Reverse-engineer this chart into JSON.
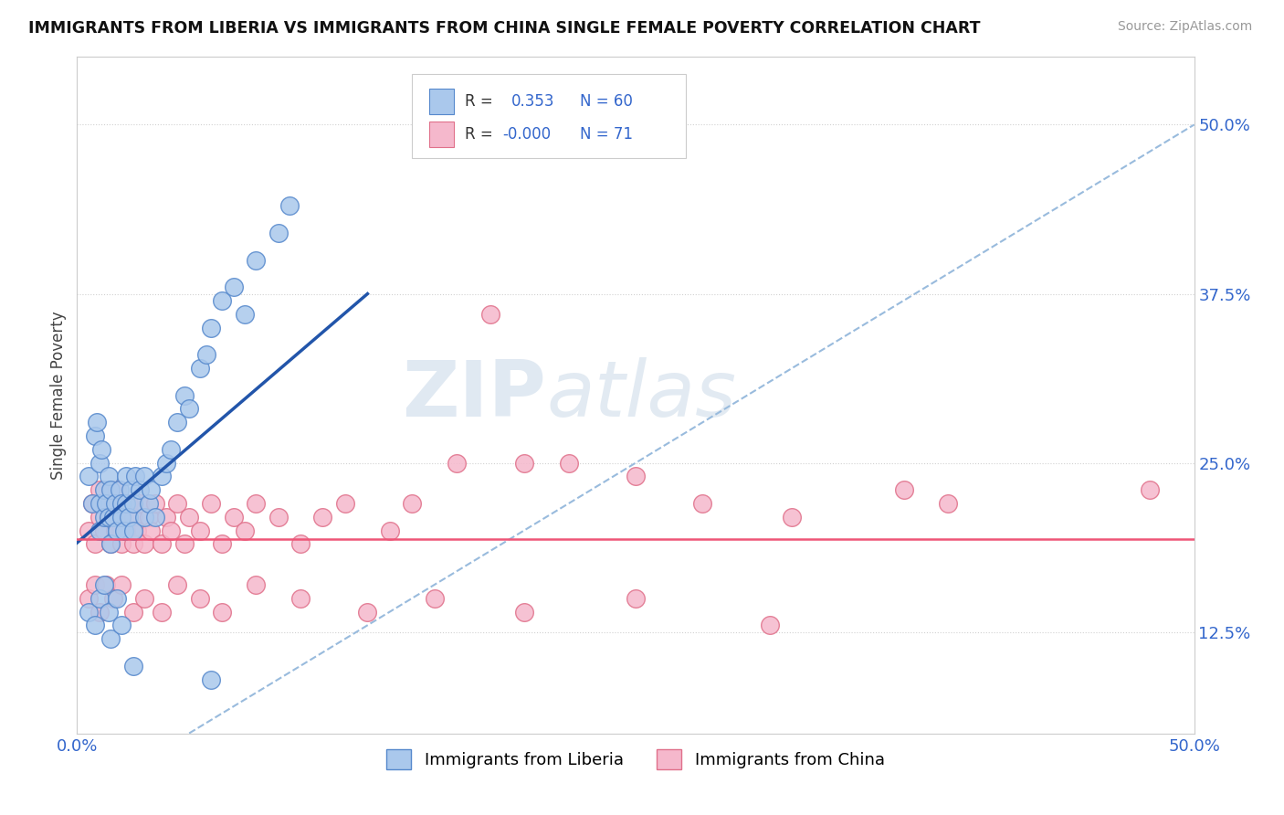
{
  "title": "IMMIGRANTS FROM LIBERIA VS IMMIGRANTS FROM CHINA SINGLE FEMALE POVERTY CORRELATION CHART",
  "source": "Source: ZipAtlas.com",
  "ylabel": "Single Female Poverty",
  "ytick_labels": [
    "12.5%",
    "25.0%",
    "37.5%",
    "50.0%"
  ],
  "ytick_values": [
    0.125,
    0.25,
    0.375,
    0.5
  ],
  "xlim": [
    0.0,
    0.5
  ],
  "ylim": [
    0.05,
    0.55
  ],
  "liberia_color": "#aac8ec",
  "china_color": "#f5b8cc",
  "liberia_edge": "#5588cc",
  "china_edge": "#e0708a",
  "liberia_line_color": "#2255aa",
  "china_line_color": "#ee5577",
  "dash_color": "#99bbdd",
  "watermark_color": "#ccdde8",
  "background_color": "#ffffff",
  "liberia_x": [
    0.005,
    0.007,
    0.008,
    0.009,
    0.01,
    0.01,
    0.01,
    0.011,
    0.012,
    0.012,
    0.013,
    0.014,
    0.014,
    0.015,
    0.015,
    0.016,
    0.017,
    0.018,
    0.019,
    0.02,
    0.02,
    0.021,
    0.022,
    0.022,
    0.023,
    0.024,
    0.025,
    0.025,
    0.026,
    0.028,
    0.03,
    0.03,
    0.032,
    0.033,
    0.035,
    0.038,
    0.04,
    0.042,
    0.045,
    0.048,
    0.05,
    0.055,
    0.058,
    0.06,
    0.065,
    0.07,
    0.075,
    0.08,
    0.09,
    0.095,
    0.005,
    0.008,
    0.01,
    0.012,
    0.014,
    0.015,
    0.018,
    0.02,
    0.025,
    0.06
  ],
  "liberia_y": [
    0.24,
    0.22,
    0.27,
    0.28,
    0.2,
    0.22,
    0.25,
    0.26,
    0.21,
    0.23,
    0.22,
    0.24,
    0.21,
    0.23,
    0.19,
    0.21,
    0.22,
    0.2,
    0.23,
    0.22,
    0.21,
    0.2,
    0.22,
    0.24,
    0.21,
    0.23,
    0.22,
    0.2,
    0.24,
    0.23,
    0.21,
    0.24,
    0.22,
    0.23,
    0.21,
    0.24,
    0.25,
    0.26,
    0.28,
    0.3,
    0.29,
    0.32,
    0.33,
    0.35,
    0.37,
    0.38,
    0.36,
    0.4,
    0.42,
    0.44,
    0.14,
    0.13,
    0.15,
    0.16,
    0.14,
    0.12,
    0.15,
    0.13,
    0.1,
    0.09
  ],
  "china_x": [
    0.005,
    0.007,
    0.008,
    0.01,
    0.01,
    0.012,
    0.013,
    0.014,
    0.015,
    0.016,
    0.017,
    0.018,
    0.02,
    0.02,
    0.022,
    0.023,
    0.025,
    0.025,
    0.027,
    0.028,
    0.03,
    0.032,
    0.033,
    0.035,
    0.038,
    0.04,
    0.042,
    0.045,
    0.048,
    0.05,
    0.055,
    0.06,
    0.065,
    0.07,
    0.075,
    0.08,
    0.09,
    0.1,
    0.11,
    0.12,
    0.14,
    0.15,
    0.17,
    0.185,
    0.2,
    0.22,
    0.25,
    0.28,
    0.32,
    0.37,
    0.005,
    0.008,
    0.01,
    0.013,
    0.016,
    0.02,
    0.025,
    0.03,
    0.038,
    0.045,
    0.055,
    0.065,
    0.08,
    0.1,
    0.13,
    0.16,
    0.2,
    0.25,
    0.31,
    0.39,
    0.48
  ],
  "china_y": [
    0.2,
    0.22,
    0.19,
    0.21,
    0.23,
    0.2,
    0.22,
    0.21,
    0.19,
    0.22,
    0.2,
    0.23,
    0.19,
    0.21,
    0.2,
    0.22,
    0.19,
    0.21,
    0.2,
    0.22,
    0.19,
    0.21,
    0.2,
    0.22,
    0.19,
    0.21,
    0.2,
    0.22,
    0.19,
    0.21,
    0.2,
    0.22,
    0.19,
    0.21,
    0.2,
    0.22,
    0.21,
    0.19,
    0.21,
    0.22,
    0.2,
    0.22,
    0.25,
    0.36,
    0.25,
    0.25,
    0.24,
    0.22,
    0.21,
    0.23,
    0.15,
    0.16,
    0.14,
    0.16,
    0.15,
    0.16,
    0.14,
    0.15,
    0.14,
    0.16,
    0.15,
    0.14,
    0.16,
    0.15,
    0.14,
    0.15,
    0.14,
    0.15,
    0.13,
    0.22,
    0.23
  ],
  "liberia_line_x": [
    0.0,
    0.13
  ],
  "liberia_line_y": [
    0.191,
    0.375
  ],
  "china_line_y": 0.194
}
